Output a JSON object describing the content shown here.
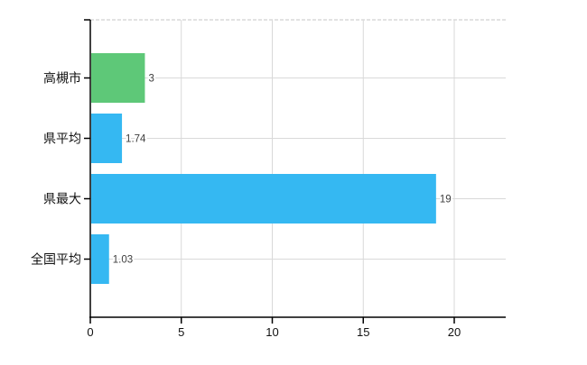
{
  "chart_data": {
    "type": "bar",
    "orientation": "horizontal",
    "title": "",
    "xlabel": "",
    "ylabel": "",
    "categories": [
      "高槻市",
      "県平均",
      "県最大",
      "全国平均"
    ],
    "values": [
      3,
      1.74,
      19,
      1.03
    ],
    "value_labels": [
      "3",
      "1.74",
      "19",
      "1.03"
    ],
    "bar_colors": [
      "#5ec878",
      "#35b8f2",
      "#35b8f2",
      "#35b8f2"
    ],
    "x_ticks": [
      0,
      5,
      10,
      15,
      20
    ],
    "x_tick_labels": [
      "0",
      "5",
      "10",
      "15",
      "20"
    ],
    "xlim": [
      0,
      22.8
    ],
    "grid": true,
    "legend": false,
    "colors": {
      "axis": "#000000",
      "gridline": "#d9d9d9",
      "top_border_dashed": "#d9d9d9",
      "category_label": "#111111",
      "tick_label": "#111111",
      "value_label": "#3d3d3d",
      "background": "#ffffff"
    }
  }
}
